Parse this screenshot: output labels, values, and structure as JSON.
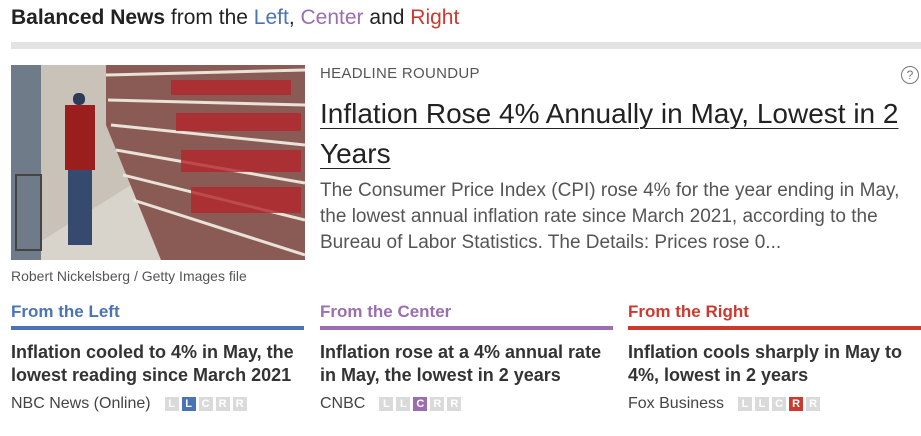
{
  "header": {
    "title_bold": "Balanced News",
    "title_from": "from the",
    "left": "Left",
    "sep": ",",
    "center": "Center",
    "and": "and",
    "right": "Right"
  },
  "image": {
    "caption": "Robert Nickelsberg / Getty Images file"
  },
  "story": {
    "label": "HEADLINE ROUNDUP",
    "help": "?",
    "headline": "Inflation Rose 4% Annually in May, Lowest in 2 Years",
    "summary": "The Consumer Price Index (CPI) rose 4% for the year ending in May, the lowest annual inflation rate since March 2021, according to the Bureau of Labor Statistics. The Details: Prices rose 0..."
  },
  "bias_scale": [
    "L",
    "L",
    "C",
    "R",
    "R"
  ],
  "columns": [
    {
      "label": "From the Left",
      "color": "#4a74b4",
      "title": "Inflation cooled to 4% in May, the lowest reading since March 2021",
      "source": "NBC News (Online)",
      "bias_selected": 1
    },
    {
      "label": "From the Center",
      "color": "#9b6eb0",
      "title": "Inflation rose at a 4% annual rate in May, the lowest in 2 years",
      "source": "CNBC",
      "bias_selected": 2
    },
    {
      "label": "From the Right",
      "color": "#cc3a2f",
      "title": "Inflation cools sharply in May to 4%, lowest in 2 years",
      "source": "Fox Business",
      "bias_selected": 3
    }
  ]
}
